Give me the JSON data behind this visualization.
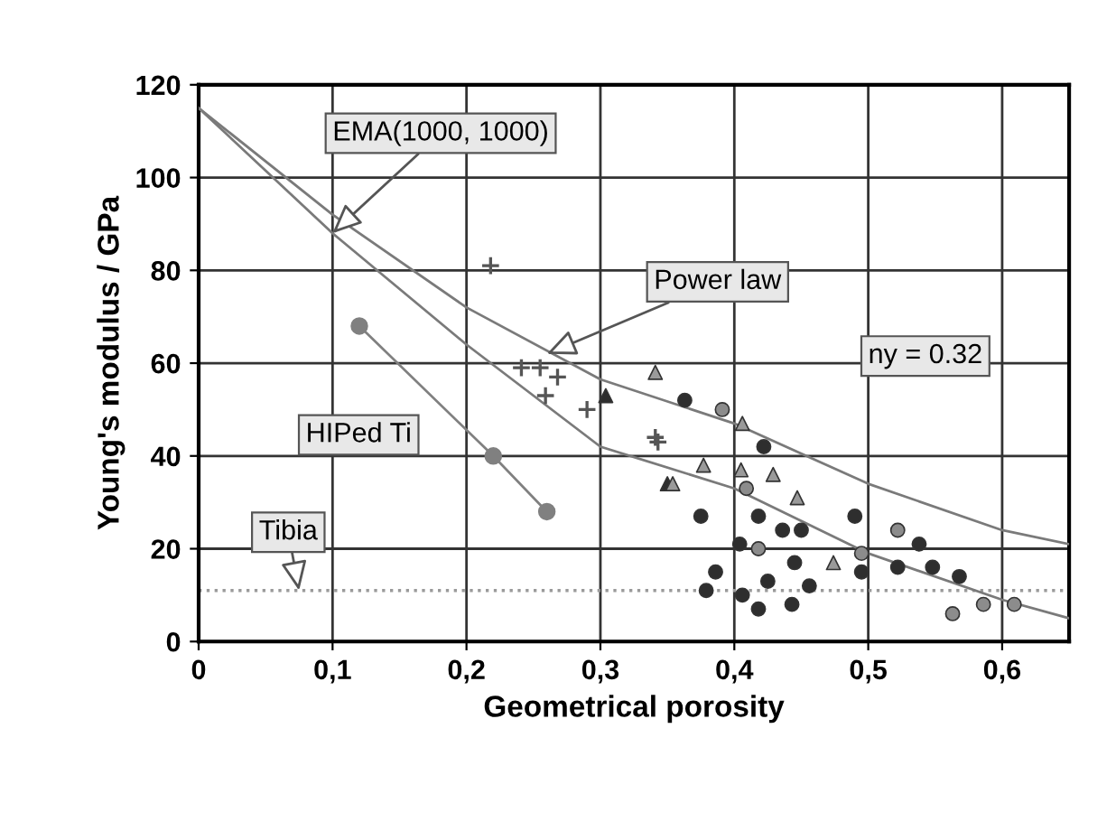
{
  "chart_data": {
    "type": "scatter",
    "xlabel": "Geometrical porosity",
    "ylabel": "Young's modulus / GPa",
    "xlim": [
      0,
      0.65
    ],
    "ylim": [
      0,
      120
    ],
    "xticks": [
      0,
      {
        "value": 0.1,
        "label": "0,1"
      },
      {
        "value": 0.2,
        "label": "0,2"
      },
      {
        "value": 0.3,
        "label": "0,3"
      },
      {
        "value": 0.4,
        "label": "0,4"
      },
      {
        "value": 0.5,
        "label": "0,5"
      },
      {
        "value": 0.6,
        "label": "0,6"
      }
    ],
    "yticks": [
      0,
      20,
      40,
      60,
      80,
      100,
      120
    ],
    "grid": true,
    "legend": false,
    "series": [
      {
        "type": "line",
        "color": "#7a7a7a",
        "marker": "none",
        "x": [
          0,
          0.1,
          0.2,
          0.3,
          0.4,
          0.5,
          0.6,
          0.65
        ],
        "values": [
          115,
          92,
          72,
          56.5,
          47,
          34,
          24,
          21
        ]
      },
      {
        "type": "line",
        "color": "#7a7a7a",
        "marker": "none",
        "x": [
          0,
          0.1,
          0.2,
          0.3,
          0.4,
          0.5,
          0.6,
          0.65
        ],
        "values": [
          115,
          88,
          64,
          42,
          33,
          19,
          9,
          5
        ]
      },
      {
        "type": "line",
        "color": "#808080",
        "marker": "circle",
        "x": [
          0.12,
          0.22,
          0.26
        ],
        "values": [
          68,
          40,
          28
        ]
      },
      {
        "color": "#2e2e2e",
        "marker": "circle",
        "x": [
          0.363,
          0.375,
          0.404,
          0.386,
          0.379,
          0.406,
          0.418,
          0.443,
          0.445,
          0.456,
          0.425,
          0.436,
          0.45,
          0.418,
          0.49,
          0.495,
          0.522,
          0.538,
          0.548,
          0.568,
          0.422
        ],
        "values": [
          52,
          27,
          21,
          15,
          11,
          10,
          7,
          8,
          17,
          12,
          13,
          24,
          24,
          27,
          27,
          15,
          16,
          21,
          16,
          14,
          42
        ]
      },
      {
        "color": "#8c8c8c",
        "marker": "circle",
        "x": [
          0.391,
          0.522,
          0.563,
          0.586,
          0.609,
          0.409,
          0.418,
          0.495
        ],
        "values": [
          50,
          24,
          6,
          8,
          8,
          33,
          20,
          19
        ]
      },
      {
        "color": "#2e2e2e",
        "marker": "triangle",
        "x": [
          0.304,
          0.35
        ],
        "values": [
          53,
          34
        ]
      },
      {
        "color": "#9a9a9a",
        "marker": "triangle",
        "x": [
          0.341,
          0.406,
          0.429,
          0.447,
          0.474,
          0.405,
          0.377,
          0.354
        ],
        "values": [
          58,
          47,
          36,
          31,
          17,
          37,
          38,
          34
        ]
      },
      {
        "color": "#555555",
        "marker": "cross",
        "x": [
          0.218,
          0.241,
          0.255,
          0.268,
          0.259,
          0.29,
          0.341,
          0.343
        ],
        "values": [
          81,
          59,
          59,
          57,
          53,
          50,
          44,
          43
        ]
      }
    ],
    "ref_lines": [
      {
        "axis": "y",
        "value": 11,
        "color": "#9a9a9a",
        "line_style": "dotted"
      }
    ],
    "annotations": [
      {
        "text": "EMA(1000, 1000)",
        "x": 0.1,
        "y": 88
      },
      {
        "text": "Power law",
        "x": 0.26,
        "y": 62
      },
      "HIPed Ti",
      {
        "text": "Tibia",
        "x": 0.075,
        "y": 11
      },
      "ny = 0.32"
    ]
  }
}
